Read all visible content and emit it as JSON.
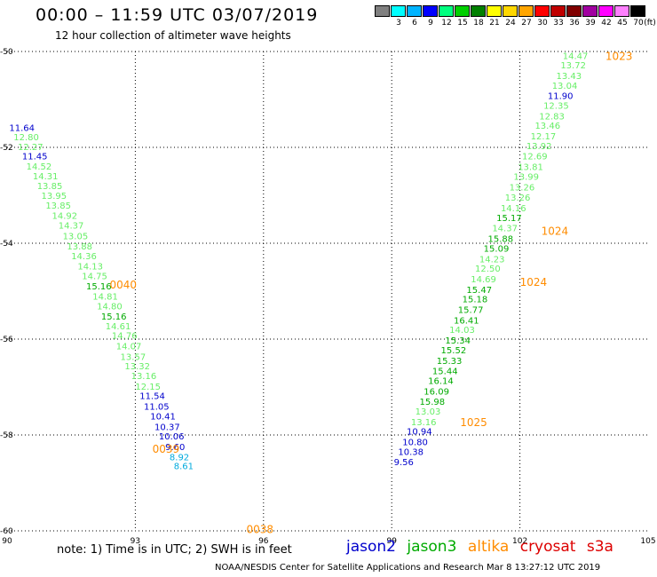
{
  "title": "00:00 – 11:59 UTC 03/07/2019",
  "subtitle": "12 hour collection of altimeter wave heights",
  "colorbar": {
    "unit": "(ft)",
    "bins": [
      {
        "label": "",
        "color": "#808080"
      },
      {
        "label": "3",
        "color": "#00ffff"
      },
      {
        "label": "6",
        "color": "#00b4ff"
      },
      {
        "label": "9",
        "color": "#0000ff"
      },
      {
        "label": "12",
        "color": "#00ff7f"
      },
      {
        "label": "15",
        "color": "#00d000"
      },
      {
        "label": "18",
        "color": "#008000"
      },
      {
        "label": "21",
        "color": "#ffff00"
      },
      {
        "label": "24",
        "color": "#ffd700"
      },
      {
        "label": "27",
        "color": "#ffa500"
      },
      {
        "label": "30",
        "color": "#ff0000"
      },
      {
        "label": "33",
        "color": "#c00000"
      },
      {
        "label": "36",
        "color": "#800000"
      },
      {
        "label": "39",
        "color": "#a000a0"
      },
      {
        "label": "42",
        "color": "#ff00ff"
      },
      {
        "label": "45",
        "color": "#ff80ff"
      },
      {
        "label": "70",
        "color": "#000000"
      }
    ]
  },
  "axes": {
    "x_ticks": [
      "90",
      "93",
      "96",
      "99",
      "102",
      "105"
    ],
    "y_ticks": [
      "-50",
      "-52",
      "-54",
      "-56",
      "-58",
      "-60"
    ]
  },
  "colors": {
    "jason2": "#0000cc",
    "jason3": "#00aa00",
    "jason3_light": "#66ee66",
    "altika": "#ff8c00",
    "cryosat": "#dd0000",
    "s3a": "#dd0000",
    "cyan": "#00aadd"
  },
  "track_times": [
    {
      "label": "0040",
      "lon": 92.4,
      "lat": -54.85
    },
    {
      "label": "0039",
      "lon": 93.4,
      "lat": -58.28
    },
    {
      "label": "0038",
      "lon": 95.6,
      "lat": -59.95
    },
    {
      "label": "1023",
      "lon": 104.0,
      "lat": -50.08
    },
    {
      "label": "1024",
      "lon": 102.5,
      "lat": -53.73
    },
    {
      "label": "1024",
      "lon": 102.0,
      "lat": -54.8
    },
    {
      "label": "1025",
      "lon": 100.6,
      "lat": -57.72
    }
  ],
  "observations": [
    {
      "v": "11.64",
      "lon": 90.05,
      "lat": -51.58,
      "c": "jason2"
    },
    {
      "v": "12.80",
      "lon": 90.15,
      "lat": -51.78,
      "c": "jason3_light"
    },
    {
      "v": "12.27",
      "lon": 90.25,
      "lat": -51.98,
      "c": "jason3_light"
    },
    {
      "v": "11.45",
      "lon": 90.35,
      "lat": -52.18,
      "c": "jason2"
    },
    {
      "v": "14.52",
      "lon": 90.45,
      "lat": -52.39,
      "c": "jason3_light"
    },
    {
      "v": "14.31",
      "lon": 90.6,
      "lat": -52.59,
      "c": "jason3_light"
    },
    {
      "v": "13.85",
      "lon": 90.7,
      "lat": -52.8,
      "c": "jason3_light"
    },
    {
      "v": "13.95",
      "lon": 90.8,
      "lat": -53.0,
      "c": "jason3_light"
    },
    {
      "v": "13.85",
      "lon": 90.9,
      "lat": -53.2,
      "c": "jason3_light"
    },
    {
      "v": "14.92",
      "lon": 91.05,
      "lat": -53.42,
      "c": "jason3_light"
    },
    {
      "v": "14.37",
      "lon": 91.2,
      "lat": -53.62,
      "c": "jason3_light"
    },
    {
      "v": "13.05",
      "lon": 91.3,
      "lat": -53.84,
      "c": "jason3_light"
    },
    {
      "v": "13.88",
      "lon": 91.4,
      "lat": -54.06,
      "c": "jason3_light"
    },
    {
      "v": "14.36",
      "lon": 91.5,
      "lat": -54.26,
      "c": "jason3_light"
    },
    {
      "v": "14.13",
      "lon": 91.65,
      "lat": -54.47,
      "c": "jason3_light"
    },
    {
      "v": "14.75",
      "lon": 91.75,
      "lat": -54.68,
      "c": "jason3_light"
    },
    {
      "v": "15.16",
      "lon": 91.85,
      "lat": -54.89,
      "c": "jason3"
    },
    {
      "v": "14.81",
      "lon": 92.0,
      "lat": -55.1,
      "c": "jason3_light"
    },
    {
      "v": "14.80",
      "lon": 92.1,
      "lat": -55.31,
      "c": "jason3_light"
    },
    {
      "v": "15.16",
      "lon": 92.2,
      "lat": -55.52,
      "c": "jason3"
    },
    {
      "v": "14.61",
      "lon": 92.3,
      "lat": -55.72,
      "c": "jason3_light"
    },
    {
      "v": "14.76",
      "lon": 92.45,
      "lat": -55.92,
      "c": "jason3_light"
    },
    {
      "v": "14.07",
      "lon": 92.55,
      "lat": -56.14,
      "c": "jason3_light"
    },
    {
      "v": "13.57",
      "lon": 92.65,
      "lat": -56.36,
      "c": "jason3_light"
    },
    {
      "v": "13.32",
      "lon": 92.75,
      "lat": -56.56,
      "c": "jason3_light"
    },
    {
      "v": "13.16",
      "lon": 92.9,
      "lat": -56.76,
      "c": "jason3_light"
    },
    {
      "v": "12.15",
      "lon": 93.0,
      "lat": -56.98,
      "c": "jason3_light"
    },
    {
      "v": "11.54",
      "lon": 93.1,
      "lat": -57.18,
      "c": "jason2"
    },
    {
      "v": "11.05",
      "lon": 93.2,
      "lat": -57.4,
      "c": "jason2"
    },
    {
      "v": "10.41",
      "lon": 93.35,
      "lat": -57.6,
      "c": "jason2"
    },
    {
      "v": "10.37",
      "lon": 93.45,
      "lat": -57.82,
      "c": "jason2"
    },
    {
      "v": "10.06",
      "lon": 93.55,
      "lat": -58.02,
      "c": "jason2"
    },
    {
      "v": "9.60",
      "lon": 93.7,
      "lat": -58.24,
      "c": "jason2"
    },
    {
      "v": "8.92",
      "lon": 93.8,
      "lat": -58.45,
      "c": "cyan"
    },
    {
      "v": "8.61",
      "lon": 93.9,
      "lat": -58.64,
      "c": "cyan"
    },
    {
      "v": "14.47",
      "lon": 103.0,
      "lat": -50.08,
      "c": "jason3_light"
    },
    {
      "v": "13.72",
      "lon": 102.95,
      "lat": -50.28,
      "c": "jason3_light"
    },
    {
      "v": "13.43",
      "lon": 102.85,
      "lat": -50.5,
      "c": "jason3_light"
    },
    {
      "v": "13.04",
      "lon": 102.75,
      "lat": -50.7,
      "c": "jason3_light"
    },
    {
      "v": "11.90",
      "lon": 102.65,
      "lat": -50.92,
      "c": "jason2"
    },
    {
      "v": "12.35",
      "lon": 102.55,
      "lat": -51.12,
      "c": "jason3_light"
    },
    {
      "v": "12.83",
      "lon": 102.45,
      "lat": -51.34,
      "c": "jason3_light"
    },
    {
      "v": "13.46",
      "lon": 102.35,
      "lat": -51.54,
      "c": "jason3_light"
    },
    {
      "v": "12.17",
      "lon": 102.25,
      "lat": -51.76,
      "c": "jason3_light"
    },
    {
      "v": "13.92",
      "lon": 102.15,
      "lat": -51.96,
      "c": "jason3_light"
    },
    {
      "v": "12.69",
      "lon": 102.05,
      "lat": -52.18,
      "c": "jason3_light"
    },
    {
      "v": "13.81",
      "lon": 101.95,
      "lat": -52.4,
      "c": "jason3_light"
    },
    {
      "v": "13.99",
      "lon": 101.85,
      "lat": -52.6,
      "c": "jason3_light"
    },
    {
      "v": "13.26",
      "lon": 101.75,
      "lat": -52.82,
      "c": "jason3_light"
    },
    {
      "v": "13.26",
      "lon": 101.65,
      "lat": -53.04,
      "c": "jason3_light"
    },
    {
      "v": "14.16",
      "lon": 101.55,
      "lat": -53.26,
      "c": "jason3_light"
    },
    {
      "v": "15.17",
      "lon": 101.45,
      "lat": -53.46,
      "c": "jason3"
    },
    {
      "v": "14.37",
      "lon": 101.35,
      "lat": -53.68,
      "c": "jason3_light"
    },
    {
      "v": "15.88",
      "lon": 101.25,
      "lat": -53.9,
      "c": "jason3"
    },
    {
      "v": "15.09",
      "lon": 101.15,
      "lat": -54.1,
      "c": "jason3"
    },
    {
      "v": "14.23",
      "lon": 101.05,
      "lat": -54.32,
      "c": "jason3_light"
    },
    {
      "v": "12.50",
      "lon": 100.95,
      "lat": -54.52,
      "c": "jason3_light"
    },
    {
      "v": "14.69",
      "lon": 100.85,
      "lat": -54.74,
      "c": "jason3_light"
    },
    {
      "v": "15.47",
      "lon": 100.75,
      "lat": -54.96,
      "c": "jason3"
    },
    {
      "v": "15.18",
      "lon": 100.65,
      "lat": -55.16,
      "c": "jason3"
    },
    {
      "v": "15.77",
      "lon": 100.55,
      "lat": -55.38,
      "c": "jason3"
    },
    {
      "v": "16.41",
      "lon": 100.45,
      "lat": -55.6,
      "c": "jason3"
    },
    {
      "v": "14.03",
      "lon": 100.35,
      "lat": -55.8,
      "c": "jason3_light"
    },
    {
      "v": "15.34",
      "lon": 100.25,
      "lat": -56.02,
      "c": "jason3"
    },
    {
      "v": "15.52",
      "lon": 100.15,
      "lat": -56.22,
      "c": "jason3"
    },
    {
      "v": "15.33",
      "lon": 100.05,
      "lat": -56.44,
      "c": "jason3"
    },
    {
      "v": "15.44",
      "lon": 99.95,
      "lat": -56.66,
      "c": "jason3"
    },
    {
      "v": "16.14",
      "lon": 99.85,
      "lat": -56.86,
      "c": "jason3"
    },
    {
      "v": "16.09",
      "lon": 99.75,
      "lat": -57.08,
      "c": "jason3"
    },
    {
      "v": "15.98",
      "lon": 99.65,
      "lat": -57.3,
      "c": "jason3"
    },
    {
      "v": "13.03",
      "lon": 99.55,
      "lat": -57.5,
      "c": "jason3_light"
    },
    {
      "v": "13.16",
      "lon": 99.45,
      "lat": -57.72,
      "c": "jason3_light"
    },
    {
      "v": "10.94",
      "lon": 99.35,
      "lat": -57.92,
      "c": "jason2"
    },
    {
      "v": "10.80",
      "lon": 99.25,
      "lat": -58.14,
      "c": "jason2"
    },
    {
      "v": "10.38",
      "lon": 99.15,
      "lat": -58.34,
      "c": "jason2"
    },
    {
      "v": "9.56",
      "lon": 99.05,
      "lat": -58.56,
      "c": "jason2"
    }
  ],
  "note": "note: 1) Time is in UTC; 2) SWH is in feet",
  "legend": {
    "jason2": "jason2",
    "jason3": "jason3",
    "altika": "altika",
    "cryosat": "cryosat",
    "s3a": "s3a"
  },
  "footer": "NOAA/NESDIS Center for Satellite Applications and Research    Mar  8 13:27:12 UTC 2019"
}
